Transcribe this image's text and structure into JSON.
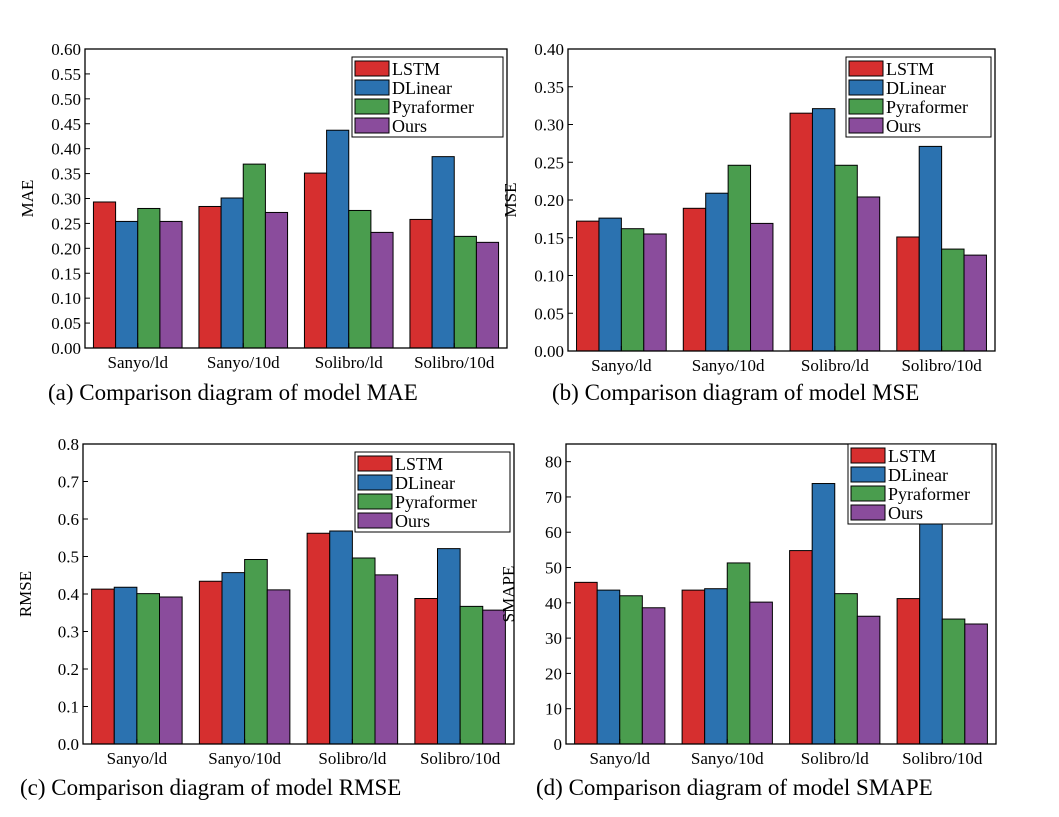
{
  "colors": {
    "LSTM": "#d62f2f",
    "DLinear": "#2b72b0",
    "Pyraformer": "#4a9d4e",
    "Ours": "#8a4c9c"
  },
  "chart_data": [
    {
      "type": "bar",
      "caption": "(a) Comparison diagram of model MAE",
      "ylabel": "MAE",
      "ylim": [
        0,
        0.6
      ],
      "yticks": [
        "0.00",
        "0.05",
        "0.10",
        "0.15",
        "0.20",
        "0.25",
        "0.30",
        "0.35",
        "0.40",
        "0.45",
        "0.50",
        "0.55",
        "0.60"
      ],
      "categories": [
        "Sanyo/ld",
        "Sanyo/10d",
        "Solibro/ld",
        "Solibro/10d"
      ],
      "series": [
        {
          "name": "LSTM",
          "values": [
            0.293,
            0.284,
            0.351,
            0.258
          ]
        },
        {
          "name": "DLinear",
          "values": [
            0.254,
            0.301,
            0.437,
            0.384
          ]
        },
        {
          "name": "Pyraformer",
          "values": [
            0.28,
            0.369,
            0.276,
            0.224
          ]
        },
        {
          "name": "Ours",
          "values": [
            0.254,
            0.272,
            0.232,
            0.212
          ]
        }
      ]
    },
    {
      "type": "bar",
      "caption": "(b) Comparison diagram of model MSE",
      "ylabel": "MSE",
      "ylim": [
        0,
        0.4
      ],
      "yticks": [
        "0.00",
        "0.05",
        "0.10",
        "0.15",
        "0.20",
        "0.25",
        "0.30",
        "0.35",
        "0.40"
      ],
      "categories": [
        "Sanyo/ld",
        "Sanyo/10d",
        "Solibro/ld",
        "Solibro/10d"
      ],
      "series": [
        {
          "name": "LSTM",
          "values": [
            0.172,
            0.189,
            0.315,
            0.151
          ]
        },
        {
          "name": "DLinear",
          "values": [
            0.176,
            0.209,
            0.321,
            0.271
          ]
        },
        {
          "name": "Pyraformer",
          "values": [
            0.162,
            0.246,
            0.246,
            0.135
          ]
        },
        {
          "name": "Ours",
          "values": [
            0.155,
            0.169,
            0.204,
            0.127
          ]
        }
      ]
    },
    {
      "type": "bar",
      "caption": "(c) Comparison diagram of model RMSE",
      "ylabel": "RMSE",
      "ylim": [
        0,
        0.8
      ],
      "yticks": [
        "0.0",
        "0.1",
        "0.2",
        "0.3",
        "0.4",
        "0.5",
        "0.6",
        "0.7",
        "0.8"
      ],
      "categories": [
        "Sanyo/ld",
        "Sanyo/10d",
        "Solibro/ld",
        "Solibro/10d"
      ],
      "series": [
        {
          "name": "LSTM",
          "values": [
            0.413,
            0.434,
            0.562,
            0.388
          ]
        },
        {
          "name": "DLinear",
          "values": [
            0.418,
            0.457,
            0.568,
            0.521
          ]
        },
        {
          "name": "Pyraformer",
          "values": [
            0.401,
            0.492,
            0.496,
            0.367
          ]
        },
        {
          "name": "Ours",
          "values": [
            0.392,
            0.411,
            0.451,
            0.357
          ]
        }
      ]
    },
    {
      "type": "bar",
      "caption": "(d)  Comparison diagram of model SMAPE",
      "ylabel": "SMAPE",
      "ylim": [
        0,
        85
      ],
      "yticks": [
        "0",
        "10",
        "20",
        "30",
        "40",
        "50",
        "60",
        "70",
        "80"
      ],
      "categories": [
        "Sanyo/ld",
        "Sanyo/10d",
        "Solibro/ld",
        "Solibro/10d"
      ],
      "series": [
        {
          "name": "LSTM",
          "values": [
            45.8,
            43.6,
            54.8,
            41.2
          ]
        },
        {
          "name": "DLinear",
          "values": [
            43.6,
            44.0,
            73.8,
            63.0
          ]
        },
        {
          "name": "Pyraformer",
          "values": [
            42.0,
            51.3,
            42.6,
            35.4
          ]
        },
        {
          "name": "Ours",
          "values": [
            38.6,
            40.2,
            36.2,
            34.0
          ]
        }
      ]
    }
  ]
}
